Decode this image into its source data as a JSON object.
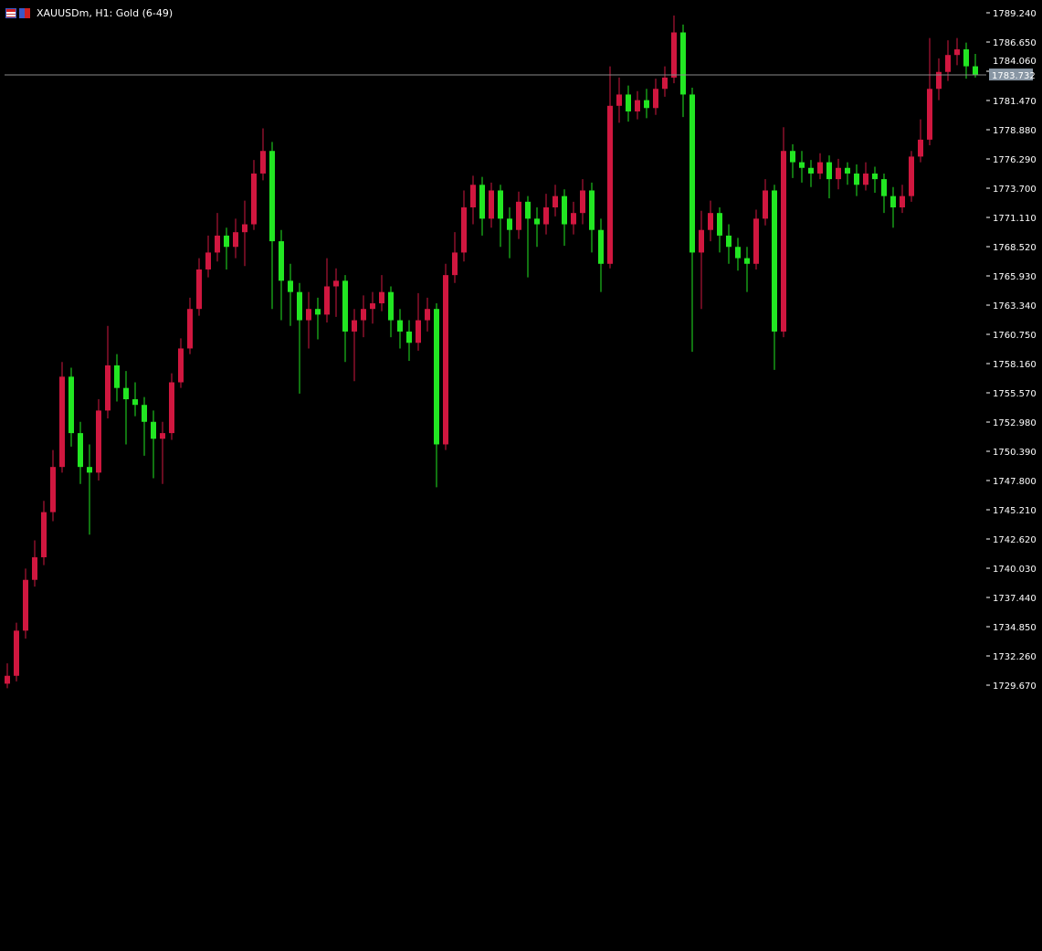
{
  "window": {
    "symbol_title": "XAUUSDm, H1:  Gold (6-49)",
    "icons": [
      "table-icon",
      "strategy-tester-icon"
    ]
  },
  "colors": {
    "background": "#000000",
    "bull_candle": "#d0173f",
    "bear_candle": "#22e622",
    "price_line": "#8a8a8a",
    "price_label_bg": "#8896a4",
    "axis_text": "#ffffff"
  },
  "chart_data": {
    "type": "candlestick",
    "title": "XAUUSDm, H1:  Gold (6-49)",
    "timeframe": "H1",
    "ylim": [
      1728.5,
      1790.2
    ],
    "y_ticks": [
      "1789.240",
      "1786.650",
      "1784.060",
      "1781.470",
      "1778.880",
      "1776.290",
      "1773.700",
      "1771.110",
      "1768.520",
      "1765.930",
      "1763.340",
      "1760.750",
      "1758.160",
      "1755.570",
      "1752.980",
      "1750.390",
      "1747.800",
      "1745.210",
      "1742.620",
      "1740.030",
      "1737.440",
      "1734.850",
      "1732.260",
      "1729.670"
    ],
    "current_price": 1783.732,
    "current_price_label": "1783.732",
    "grid": false,
    "ohlc_fields": [
      "open",
      "high",
      "low",
      "close"
    ],
    "candles": [
      [
        1729.8,
        1731.6,
        1729.4,
        1730.5
      ],
      [
        1730.5,
        1735.2,
        1730.0,
        1734.5
      ],
      [
        1734.5,
        1740.0,
        1733.8,
        1739.0
      ],
      [
        1739.0,
        1742.5,
        1738.4,
        1741.0
      ],
      [
        1741.0,
        1746.0,
        1740.3,
        1745.0
      ],
      [
        1745.0,
        1750.5,
        1744.2,
        1749.0
      ],
      [
        1749.0,
        1758.3,
        1748.5,
        1757.0
      ],
      [
        1757.0,
        1757.8,
        1750.8,
        1752.0
      ],
      [
        1752.0,
        1753.0,
        1747.5,
        1749.0
      ],
      [
        1749.0,
        1751.0,
        1743.0,
        1748.5
      ],
      [
        1748.5,
        1755.0,
        1747.8,
        1754.0
      ],
      [
        1754.0,
        1761.5,
        1753.3,
        1758.0
      ],
      [
        1758.0,
        1759.0,
        1754.8,
        1756.0
      ],
      [
        1756.0,
        1757.5,
        1751.0,
        1755.0
      ],
      [
        1755.0,
        1756.5,
        1753.5,
        1754.5
      ],
      [
        1754.5,
        1755.2,
        1750.0,
        1753.0
      ],
      [
        1753.0,
        1754.0,
        1748.0,
        1751.5
      ],
      [
        1751.5,
        1753.0,
        1747.5,
        1752.0
      ],
      [
        1752.0,
        1757.3,
        1751.4,
        1756.5
      ],
      [
        1756.5,
        1760.4,
        1756.0,
        1759.5
      ],
      [
        1759.5,
        1764.0,
        1759.0,
        1763.0
      ],
      [
        1763.0,
        1767.5,
        1762.4,
        1766.5
      ],
      [
        1766.5,
        1769.5,
        1765.8,
        1768.0
      ],
      [
        1768.0,
        1771.5,
        1767.2,
        1769.5
      ],
      [
        1769.5,
        1770.2,
        1766.5,
        1768.5
      ],
      [
        1768.5,
        1771.0,
        1767.5,
        1769.8
      ],
      [
        1769.8,
        1772.6,
        1766.8,
        1770.5
      ],
      [
        1770.5,
        1776.2,
        1770.0,
        1775.0
      ],
      [
        1775.0,
        1779.0,
        1774.4,
        1777.0
      ],
      [
        1777.0,
        1777.8,
        1763.0,
        1769.0
      ],
      [
        1769.0,
        1770.0,
        1762.0,
        1765.5
      ],
      [
        1765.5,
        1767.0,
        1761.5,
        1764.5
      ],
      [
        1764.5,
        1765.3,
        1755.5,
        1762.0
      ],
      [
        1762.0,
        1764.5,
        1759.5,
        1763.0
      ],
      [
        1763.0,
        1764.0,
        1760.3,
        1762.5
      ],
      [
        1762.5,
        1767.5,
        1761.8,
        1765.0
      ],
      [
        1765.0,
        1766.6,
        1762.3,
        1765.5
      ],
      [
        1765.5,
        1766.0,
        1758.3,
        1761.0
      ],
      [
        1761.0,
        1763.0,
        1756.6,
        1762.0
      ],
      [
        1762.0,
        1764.2,
        1760.5,
        1763.0
      ],
      [
        1763.0,
        1764.5,
        1761.7,
        1763.5
      ],
      [
        1763.5,
        1766.0,
        1762.8,
        1764.5
      ],
      [
        1764.5,
        1765.0,
        1760.5,
        1762.0
      ],
      [
        1762.0,
        1763.0,
        1759.5,
        1761.0
      ],
      [
        1761.0,
        1762.0,
        1758.4,
        1760.0
      ],
      [
        1760.0,
        1764.4,
        1759.3,
        1762.0
      ],
      [
        1762.0,
        1764.0,
        1761.0,
        1763.0
      ],
      [
        1763.0,
        1763.5,
        1747.2,
        1751.0
      ],
      [
        1751.0,
        1767.0,
        1750.5,
        1766.0
      ],
      [
        1766.0,
        1769.8,
        1765.3,
        1768.0
      ],
      [
        1768.0,
        1773.5,
        1767.2,
        1772.0
      ],
      [
        1772.0,
        1774.8,
        1770.5,
        1774.0
      ],
      [
        1774.0,
        1774.7,
        1769.5,
        1771.0
      ],
      [
        1771.0,
        1774.2,
        1770.2,
        1773.5
      ],
      [
        1773.5,
        1774.0,
        1768.5,
        1771.0
      ],
      [
        1771.0,
        1772.0,
        1767.5,
        1770.0
      ],
      [
        1770.0,
        1773.4,
        1769.2,
        1772.5
      ],
      [
        1772.5,
        1773.0,
        1765.8,
        1771.0
      ],
      [
        1771.0,
        1772.0,
        1768.5,
        1770.5
      ],
      [
        1770.5,
        1773.2,
        1769.6,
        1772.0
      ],
      [
        1772.0,
        1774.0,
        1771.2,
        1773.0
      ],
      [
        1773.0,
        1773.6,
        1768.6,
        1770.5
      ],
      [
        1770.5,
        1772.5,
        1769.6,
        1771.5
      ],
      [
        1771.5,
        1774.5,
        1770.5,
        1773.5
      ],
      [
        1773.5,
        1774.2,
        1768.0,
        1770.0
      ],
      [
        1770.0,
        1771.0,
        1764.5,
        1767.0
      ],
      [
        1767.0,
        1784.5,
        1766.6,
        1781.0
      ],
      [
        1781.0,
        1783.5,
        1779.5,
        1782.0
      ],
      [
        1782.0,
        1782.8,
        1779.6,
        1780.5
      ],
      [
        1780.5,
        1782.3,
        1779.8,
        1781.5
      ],
      [
        1781.5,
        1782.5,
        1779.9,
        1780.8
      ],
      [
        1780.8,
        1783.4,
        1780.2,
        1782.5
      ],
      [
        1782.5,
        1784.5,
        1781.8,
        1783.5
      ],
      [
        1783.5,
        1789.0,
        1783.0,
        1787.5
      ],
      [
        1787.5,
        1788.2,
        1780.0,
        1782.0
      ],
      [
        1782.0,
        1782.6,
        1759.2,
        1768.0
      ],
      [
        1768.0,
        1771.7,
        1763.0,
        1770.0
      ],
      [
        1770.0,
        1772.6,
        1769.0,
        1771.5
      ],
      [
        1771.5,
        1772.0,
        1768.0,
        1769.5
      ],
      [
        1769.5,
        1770.5,
        1767.0,
        1768.5
      ],
      [
        1768.5,
        1769.3,
        1766.4,
        1767.5
      ],
      [
        1767.5,
        1768.5,
        1764.5,
        1767.0
      ],
      [
        1767.0,
        1771.8,
        1766.5,
        1771.0
      ],
      [
        1771.0,
        1774.5,
        1770.4,
        1773.5
      ],
      [
        1773.5,
        1774.0,
        1757.6,
        1761.0
      ],
      [
        1761.0,
        1779.1,
        1760.5,
        1777.0
      ],
      [
        1777.0,
        1777.6,
        1774.6,
        1776.0
      ],
      [
        1776.0,
        1777.0,
        1774.2,
        1775.5
      ],
      [
        1775.5,
        1776.2,
        1773.8,
        1775.0
      ],
      [
        1775.0,
        1776.8,
        1774.5,
        1776.0
      ],
      [
        1776.0,
        1776.6,
        1772.8,
        1774.5
      ],
      [
        1774.5,
        1776.3,
        1773.6,
        1775.5
      ],
      [
        1775.5,
        1776.0,
        1774.0,
        1775.0
      ],
      [
        1775.0,
        1775.8,
        1773.0,
        1774.0
      ],
      [
        1774.0,
        1776.0,
        1773.5,
        1775.0
      ],
      [
        1775.0,
        1775.6,
        1773.3,
        1774.5
      ],
      [
        1774.5,
        1775.0,
        1771.5,
        1773.0
      ],
      [
        1773.0,
        1773.8,
        1770.2,
        1772.0
      ],
      [
        1772.0,
        1774.0,
        1771.5,
        1773.0
      ],
      [
        1773.0,
        1777.0,
        1772.5,
        1776.5
      ],
      [
        1776.5,
        1779.8,
        1776.0,
        1778.0
      ],
      [
        1778.0,
        1787.0,
        1777.5,
        1782.5
      ],
      [
        1782.5,
        1785.2,
        1781.5,
        1784.0
      ],
      [
        1784.0,
        1786.8,
        1783.2,
        1785.5
      ],
      [
        1785.5,
        1787.0,
        1784.6,
        1786.0
      ],
      [
        1786.0,
        1786.6,
        1783.4,
        1784.5
      ],
      [
        1784.5,
        1785.6,
        1783.5,
        1783.732
      ]
    ]
  }
}
